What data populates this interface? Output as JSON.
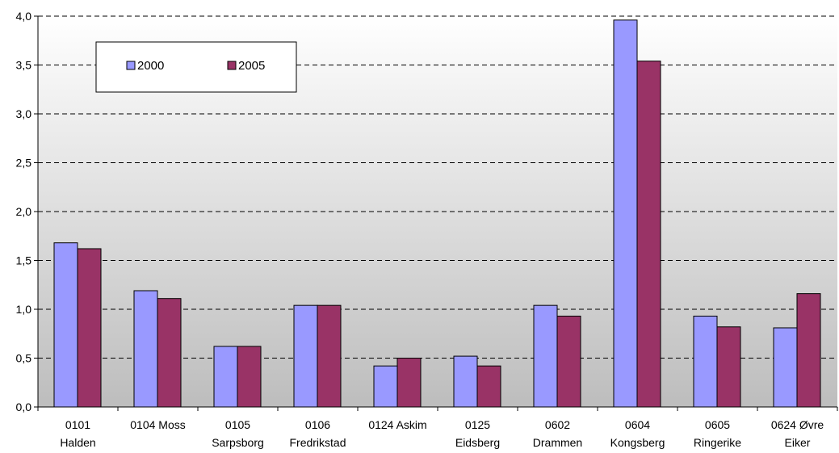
{
  "chart_data": {
    "type": "bar",
    "categories": [
      [
        "0101",
        "Halden"
      ],
      [
        "0104 Moss"
      ],
      [
        "0105",
        "Sarpsborg"
      ],
      [
        "0106",
        "Fredrikstad"
      ],
      [
        "0124 Askim"
      ],
      [
        "0125",
        "Eidsberg"
      ],
      [
        "0602",
        "Drammen"
      ],
      [
        "0604",
        "Kongsberg"
      ],
      [
        "0605",
        "Ringerike"
      ],
      [
        "0624 Øvre",
        "Eiker"
      ]
    ],
    "series": [
      {
        "name": "2000",
        "color": "#9999FF",
        "values": [
          1.68,
          1.19,
          0.62,
          1.04,
          0.42,
          0.52,
          1.04,
          3.96,
          0.93,
          0.81
        ]
      },
      {
        "name": "2005",
        "color": "#993366",
        "values": [
          1.62,
          1.11,
          0.62,
          1.04,
          0.5,
          0.42,
          0.93,
          3.54,
          0.82,
          1.16
        ]
      }
    ],
    "yticks": [
      "0,0",
      "0,5",
      "1,0",
      "1,5",
      "2,0",
      "2,5",
      "3,0",
      "3,5",
      "4,0"
    ],
    "ylim": [
      0,
      4
    ],
    "title": "",
    "xlabel": "",
    "ylabel": "",
    "grid": true,
    "legend": "top-left"
  }
}
